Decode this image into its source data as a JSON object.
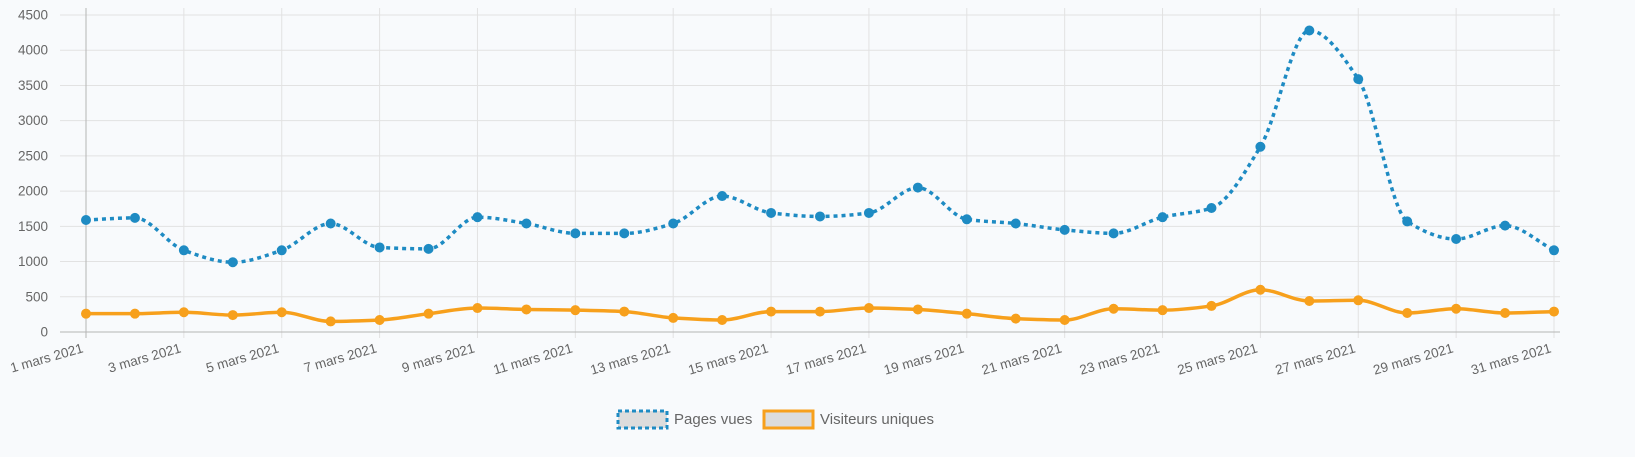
{
  "chart_data": {
    "type": "line",
    "title": "",
    "xlabel": "",
    "ylabel": "",
    "ylim": [
      0,
      4500
    ],
    "yticks": [
      0,
      500,
      1000,
      1500,
      2000,
      2500,
      3000,
      3500,
      4000,
      4500
    ],
    "grid": true,
    "legend_position": "bottom-center",
    "categories": [
      "1 mars 2021",
      "2 mars 2021",
      "3 mars 2021",
      "4 mars 2021",
      "5 mars 2021",
      "6 mars 2021",
      "7 mars 2021",
      "8 mars 2021",
      "9 mars 2021",
      "10 mars 2021",
      "11 mars 2021",
      "12 mars 2021",
      "13 mars 2021",
      "14 mars 2021",
      "15 mars 2021",
      "16 mars 2021",
      "17 mars 2021",
      "18 mars 2021",
      "19 mars 2021",
      "20 mars 2021",
      "21 mars 2021",
      "22 mars 2021",
      "23 mars 2021",
      "24 mars 2021",
      "25 mars 2021",
      "26 mars 2021",
      "27 mars 2021",
      "28 mars 2021",
      "29 mars 2021",
      "30 mars 2021",
      "31 mars 2021"
    ],
    "visible_x_tick_labels": [
      "1 mars 2021",
      "3 mars 2021",
      "5 mars 2021",
      "7 mars 2021",
      "9 mars 2021",
      "11 mars 2021",
      "13 mars 2021",
      "15 mars 2021",
      "17 mars 2021",
      "19 mars 2021",
      "21 mars 2021",
      "23 mars 2021",
      "25 mars 2021",
      "27 mars 2021",
      "29 mars 2021",
      "31 mars 2021"
    ],
    "series": [
      {
        "name": "Pages vues",
        "color": "#1e8bc3",
        "line_style": "dotted",
        "values": [
          1590,
          1620,
          1160,
          990,
          1160,
          1540,
          1200,
          1180,
          1630,
          1540,
          1400,
          1400,
          1540,
          1930,
          1690,
          1640,
          1690,
          2050,
          1600,
          1540,
          1450,
          1400,
          1630,
          1760,
          2630,
          4280,
          3590,
          1570,
          1320,
          1510,
          1160
        ]
      },
      {
        "name": "Visiteurs uniques",
        "color": "#f7a01c",
        "line_style": "solid",
        "values": [
          260,
          260,
          280,
          240,
          280,
          150,
          170,
          260,
          340,
          320,
          310,
          290,
          200,
          170,
          290,
          290,
          340,
          320,
          260,
          190,
          170,
          330,
          310,
          370,
          600,
          440,
          450,
          270,
          330,
          270,
          290
        ]
      }
    ]
  }
}
